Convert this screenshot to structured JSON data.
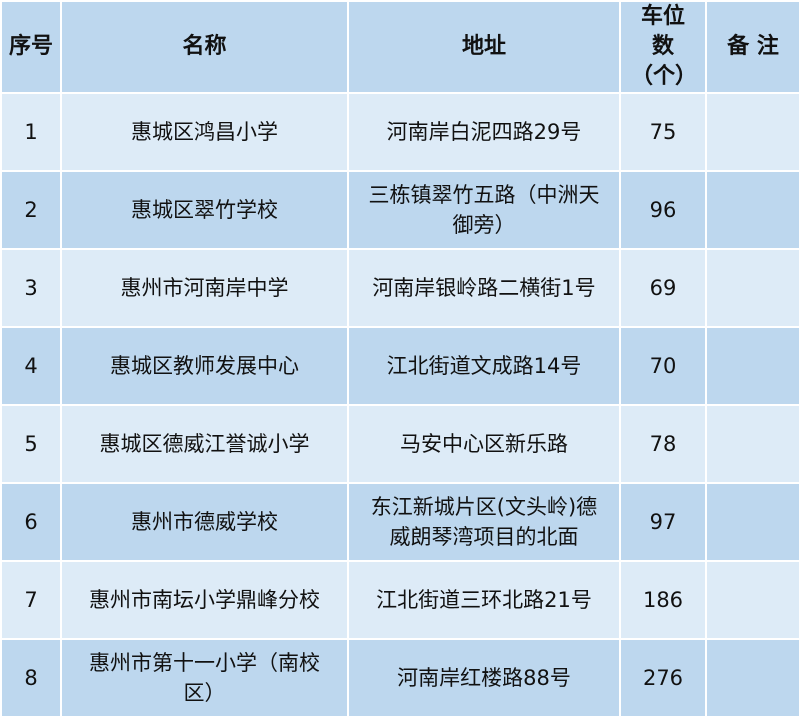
{
  "colors": {
    "header": "#bdd7ee",
    "row_light": "#ddebf7",
    "row_dark": "#bdd7ee"
  },
  "headers": [
    "序号",
    "名称",
    "地址",
    "车位数（个）",
    "备 注"
  ],
  "rows": [
    {
      "no": "1",
      "name": "惠城区鸿昌小学",
      "address": "河南岸白泥四路29号",
      "spaces": "75",
      "note": ""
    },
    {
      "no": "2",
      "name": "惠城区翠竹学校",
      "address": "三栋镇翠竹五路（中洲天御旁）",
      "spaces": "96",
      "note": ""
    },
    {
      "no": "3",
      "name": "惠州市河南岸中学",
      "address": "河南岸银岭路二横街1号",
      "spaces": "69",
      "note": ""
    },
    {
      "no": "4",
      "name": "惠城区教师发展中心",
      "address": "江北街道文成路14号",
      "spaces": "70",
      "note": ""
    },
    {
      "no": "5",
      "name": "惠城区德威江誉诚小学",
      "address": "马安中心区新乐路",
      "spaces": "78",
      "note": ""
    },
    {
      "no": "6",
      "name": "惠州市德威学校",
      "address": "东江新城片区(文头岭)德威朗琴湾项目的北面",
      "spaces": "97",
      "note": ""
    },
    {
      "no": "7",
      "name": "惠州市南坛小学鼎峰分校",
      "address": "江北街道三环北路21号",
      "spaces": "186",
      "note": ""
    },
    {
      "no": "8",
      "name": "惠州市第十一小学（南校区）",
      "address": "河南岸红楼路88号",
      "spaces": "276",
      "note": ""
    }
  ]
}
